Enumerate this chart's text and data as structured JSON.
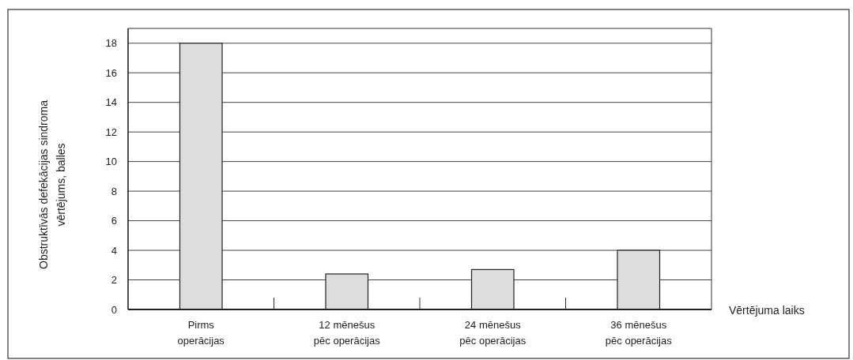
{
  "chart_data": {
    "type": "bar",
    "xlabel": "Vērtējuma laiks",
    "ylabel": "Obstruktīvās defekācijas sindroma vērtējums, balles",
    "categories": [
      "Pirms operācijas",
      "12 mēnešus pēc operācijas",
      "24 mēnešus pēc operācijas",
      "36 mēnešus pēc operācijas"
    ],
    "values": [
      18,
      2.4,
      2.7,
      4
    ],
    "color": "#dcdddf",
    "ylim": [
      0,
      19
    ],
    "yticks": [
      0,
      2,
      4,
      6,
      8,
      10,
      12,
      14,
      16,
      18
    ],
    "grid": "y"
  }
}
